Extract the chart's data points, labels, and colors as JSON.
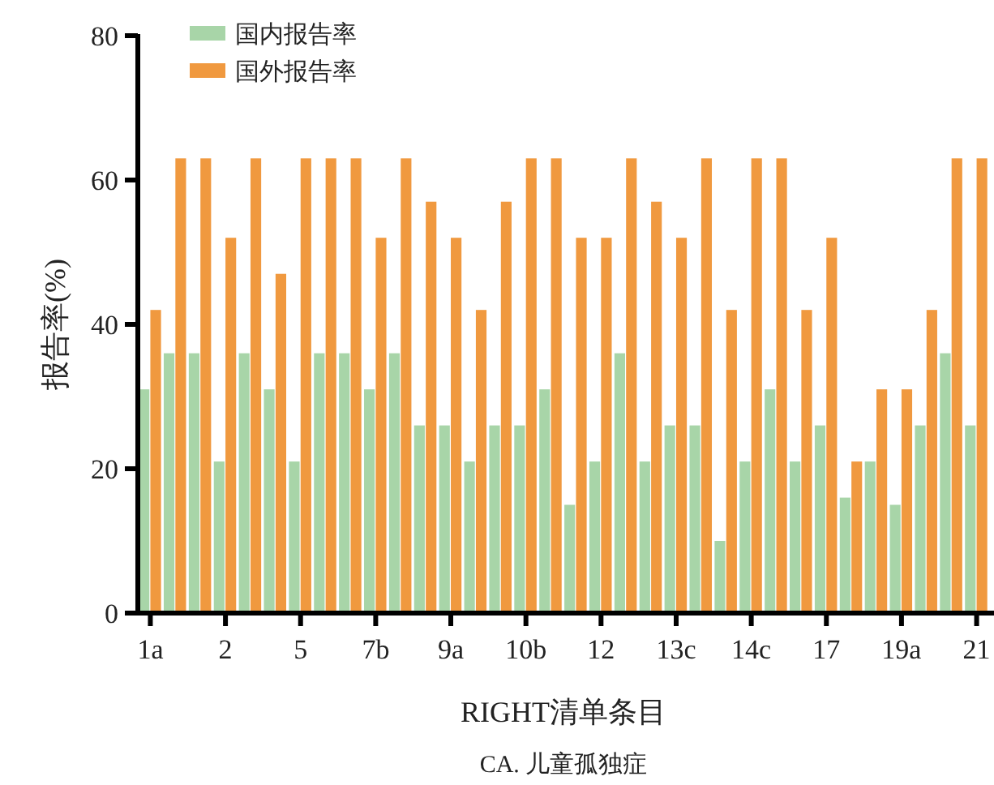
{
  "chart_data": {
    "type": "bar",
    "title": "CA. 儿童孤独症",
    "xlabel": "RIGHT清单条目",
    "ylabel": "报告率(%)",
    "categories": [
      "1a",
      null,
      null,
      "2",
      null,
      null,
      "5",
      null,
      null,
      "7b",
      null,
      null,
      "9a",
      null,
      null,
      "10b",
      null,
      null,
      "12",
      null,
      null,
      "13c",
      null,
      null,
      "14c",
      null,
      null,
      "17",
      null,
      null,
      "19a",
      null,
      null,
      "21"
    ],
    "series": [
      {
        "name": "国内报告率",
        "color": "#a8d5a8",
        "values": [
          31,
          36,
          36,
          21,
          36,
          31,
          21,
          36,
          36,
          31,
          36,
          26,
          26,
          21,
          26,
          26,
          31,
          15,
          21,
          36,
          21,
          26,
          26,
          10,
          21,
          31,
          21,
          26,
          16,
          21,
          15,
          26,
          36,
          26
        ]
      },
      {
        "name": "国外报告率",
        "color": "#f0993f",
        "values": [
          42,
          63,
          63,
          52,
          63,
          47,
          63,
          63,
          63,
          52,
          63,
          57,
          52,
          42,
          57,
          63,
          63,
          52,
          52,
          63,
          57,
          52,
          63,
          42,
          63,
          63,
          42,
          52,
          21,
          31,
          31,
          42,
          63,
          63
        ]
      }
    ],
    "ylim": [
      0,
      80
    ],
    "yticks": [
      0,
      20,
      40,
      60,
      80
    ],
    "legend": "top left",
    "grid": false
  }
}
